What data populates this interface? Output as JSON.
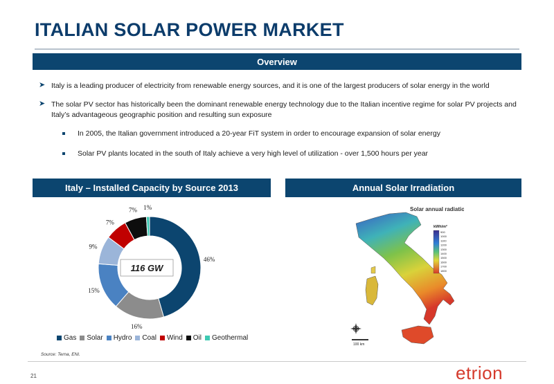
{
  "header": {
    "title": "ITALIAN SOLAR POWER MARKET"
  },
  "overview": {
    "heading": "Overview",
    "bullets": [
      "Italy is a leading producer of electricity from renewable energy sources, and it is one of the largest producers of solar energy in the world",
      "The solar PV sector has historically been the dominant renewable energy technology due to the Italian incentive regime for solar PV projects and Italy’s advantageous geographic position and resulting sun exposure"
    ],
    "sub_bullets": [
      "In 2005, the Italian government introduced a 20-year FiT system in order to encourage expansion of solar energy",
      "Solar PV plants located in the south of Italy achieve a very high level of utilization - over 1,500 hours per year"
    ]
  },
  "capacity": {
    "heading": "Italy – Installed Capacity by Source 2013"
  },
  "irradiation": {
    "heading": "Annual Solar Irradiation",
    "map_title": "Solar annual radiation",
    "unit": "kWh/m²",
    "scale_values": [
      "900",
      "1000",
      "1100",
      "1200",
      "1300",
      "1400",
      "1500",
      "1600",
      "1700",
      "1800"
    ],
    "scale_label": "100 km"
  },
  "chart_data": {
    "type": "pie",
    "center_label": "116 GW",
    "categories": [
      "Gas",
      "Solar",
      "Hydro",
      "Coal",
      "Wind",
      "Oil",
      "Geothermal"
    ],
    "values": [
      46,
      16,
      15,
      9,
      7,
      7,
      1
    ],
    "value_labels": [
      "46%",
      "16%",
      "15%",
      "9%",
      "7%",
      "7%",
      "1%"
    ],
    "colors": [
      "#0c456f",
      "#8c8c8c",
      "#4a82c2",
      "#9bb5d9",
      "#c00000",
      "#0d0d0d",
      "#3ec9b2"
    ],
    "legend": "bottom"
  },
  "footer": {
    "source": "Source: Terna, ENI.",
    "page_number": "21",
    "logo": "etrion"
  }
}
